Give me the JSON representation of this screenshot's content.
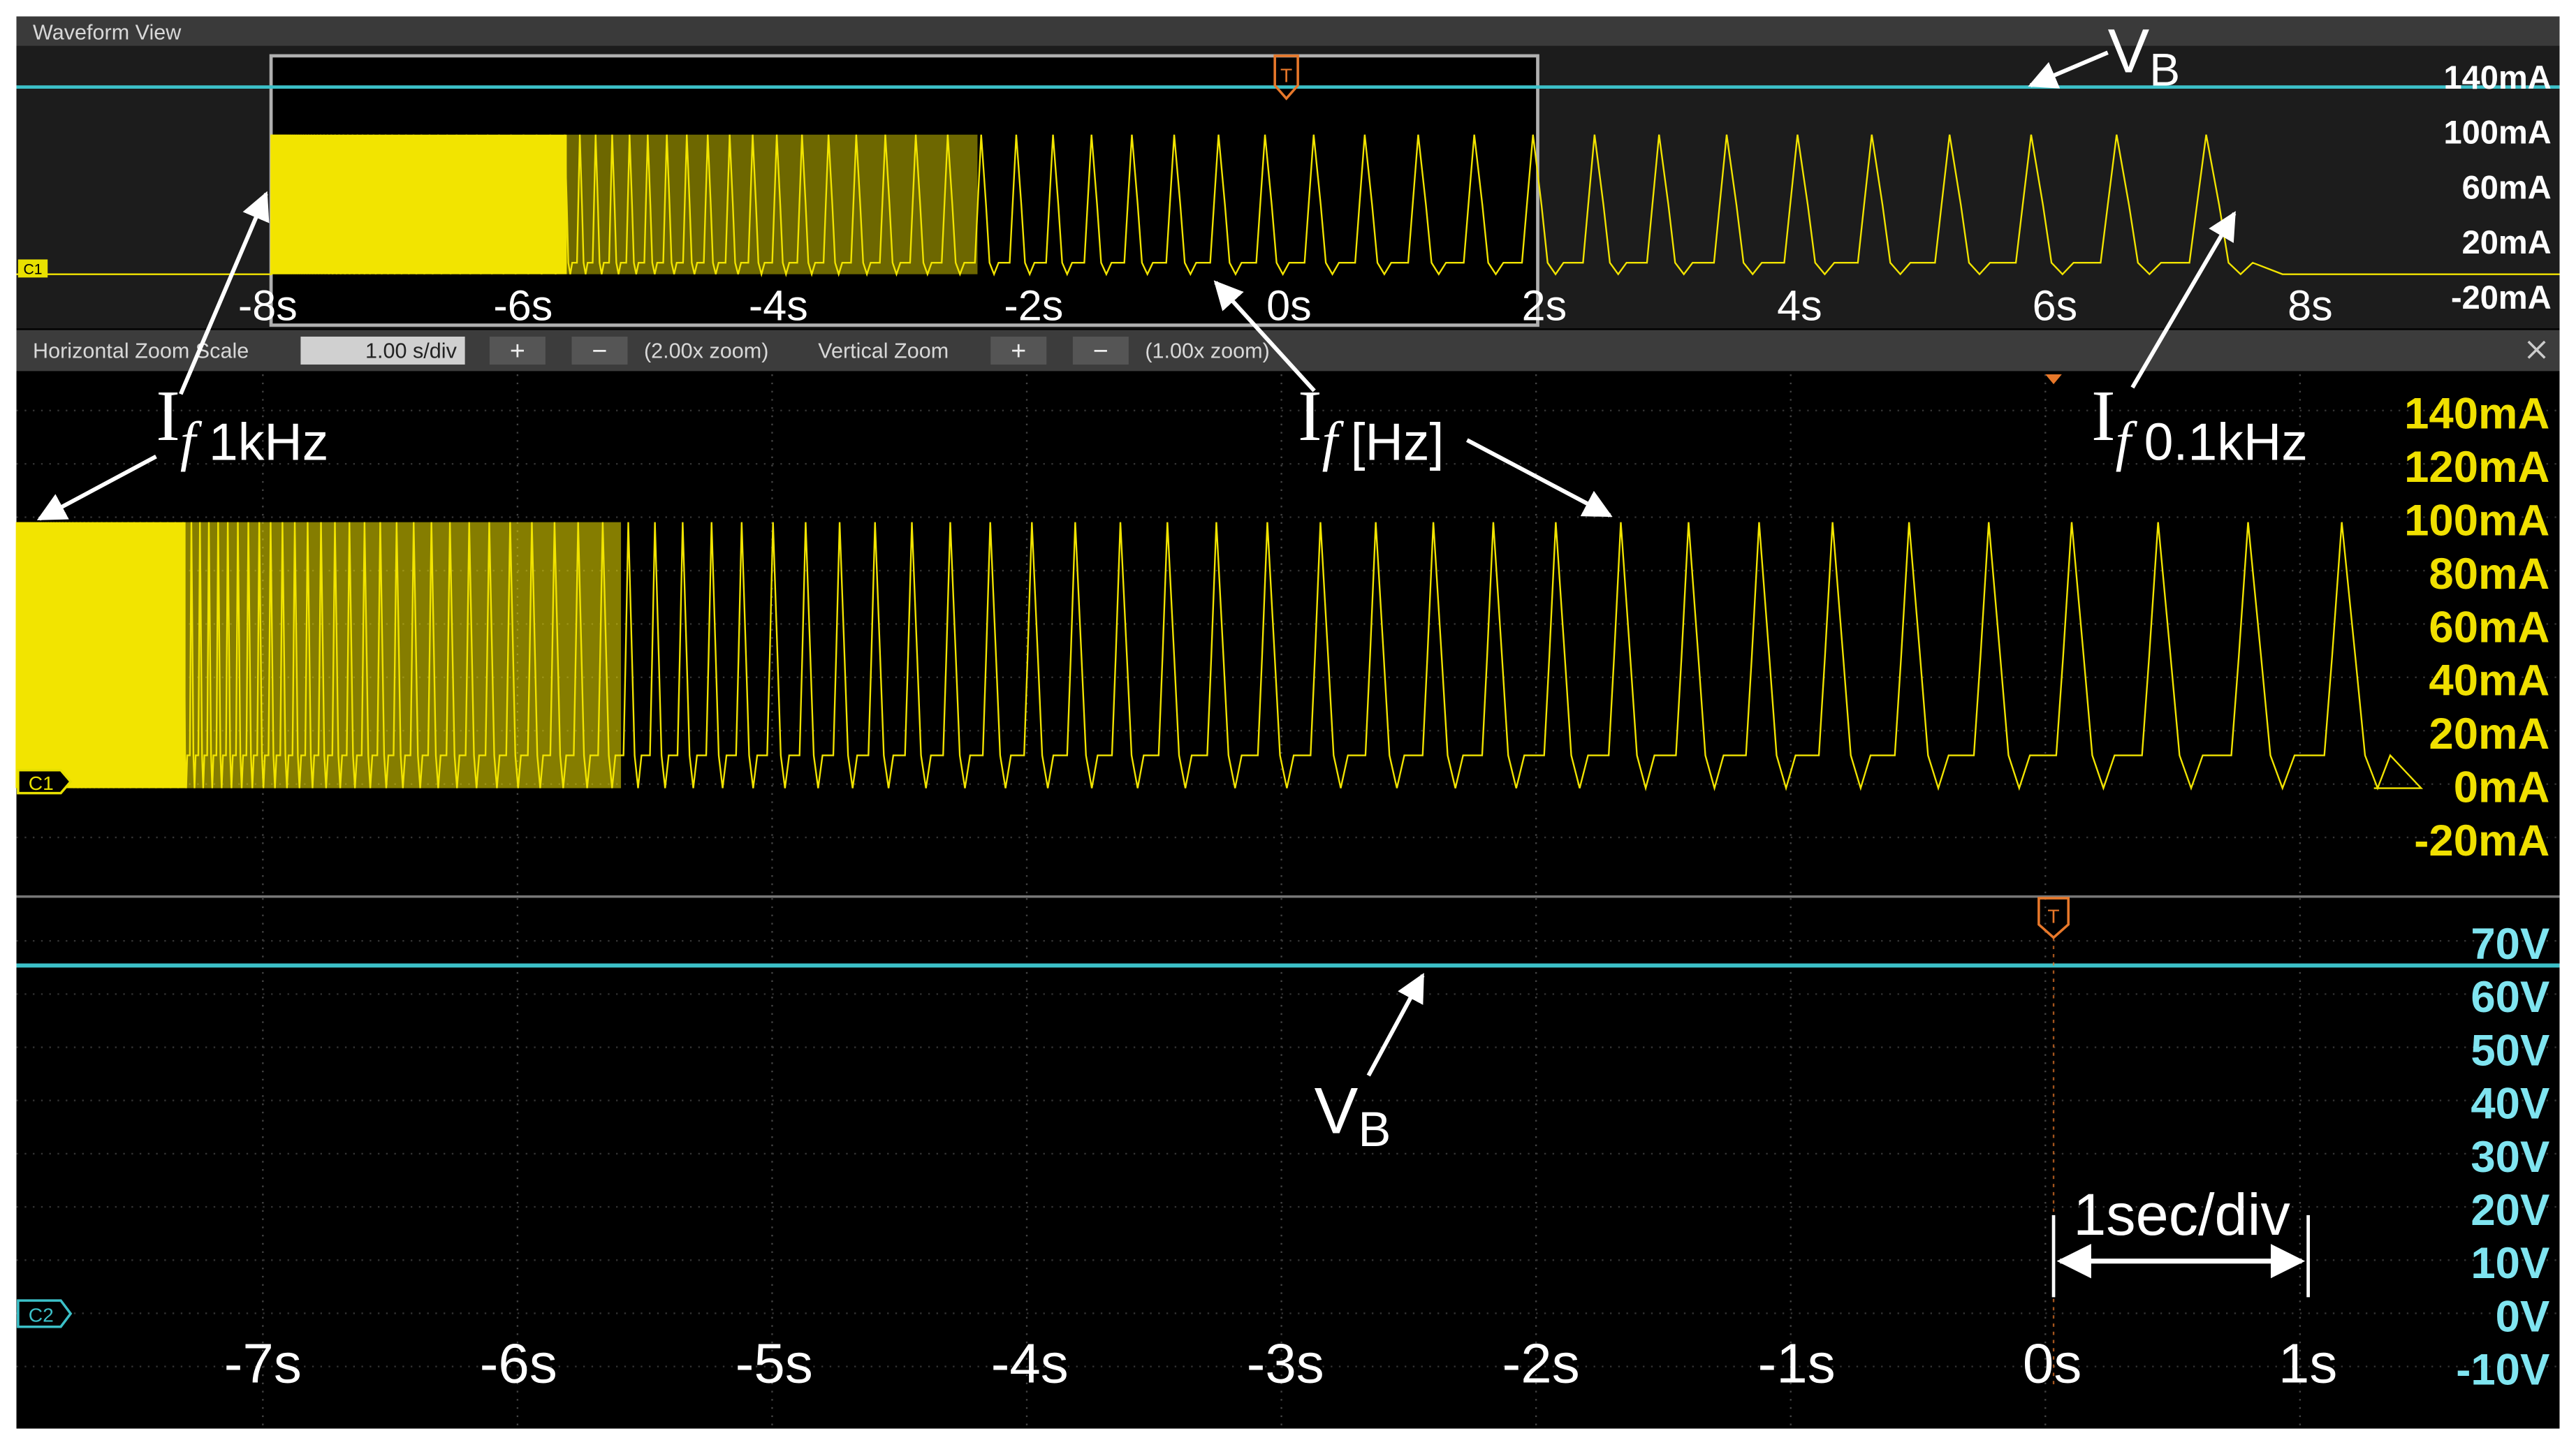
{
  "window": {
    "title": "Waveform View"
  },
  "overview": {
    "channel": "C1",
    "trigger": "T",
    "y_labels": [
      "140mA",
      "100mA",
      "60mA",
      "20mA",
      "-20mA"
    ],
    "x_labels": [
      "-8s",
      "-6s",
      "-4s",
      "-2s",
      "0s",
      "2s",
      "4s",
      "6s",
      "8s"
    ]
  },
  "zoom_bar": {
    "horizontal_label": "Horizontal Zoom Scale",
    "horizontal_value": "1.00 s/div",
    "horizontal_buttons": [
      "+",
      "−"
    ],
    "horizontal_zoom": "(2.00x zoom)",
    "vertical_label": "Vertical Zoom",
    "vertical_buttons": [
      "+",
      "−"
    ],
    "vertical_zoom": "(1.00x zoom)"
  },
  "current_panel": {
    "channel": "C1",
    "trigger": "T",
    "y_labels": [
      "140mA",
      "120mA",
      "100mA",
      "80mA",
      "60mA",
      "40mA",
      "20mA",
      "0mA",
      "-20mA"
    ]
  },
  "voltage_panel": {
    "channel": "C2",
    "trigger": "T",
    "y_labels": [
      "70V",
      "60V",
      "50V",
      "40V",
      "30V",
      "20V",
      "10V",
      "0V",
      "-10V"
    ],
    "x_labels": [
      "-7s",
      "-6s",
      "-5s",
      "-4s",
      "-3s",
      "-2s",
      "-1s",
      "0s",
      "1s"
    ]
  },
  "annotations": {
    "vb_top": {
      "symbol": "V",
      "subscript": "B"
    },
    "if_1khz": {
      "symbol": "I",
      "italic": "f",
      "subscript": "1kHz"
    },
    "if_hz": {
      "symbol": "I",
      "italic": "f",
      "subscript": "[Hz]"
    },
    "if_01khz": {
      "symbol": "I",
      "italic": "f",
      "subscript": "0.1kHz"
    },
    "vb_bottom": {
      "symbol": "V",
      "subscript": "B"
    },
    "scale": "1sec/div"
  }
}
